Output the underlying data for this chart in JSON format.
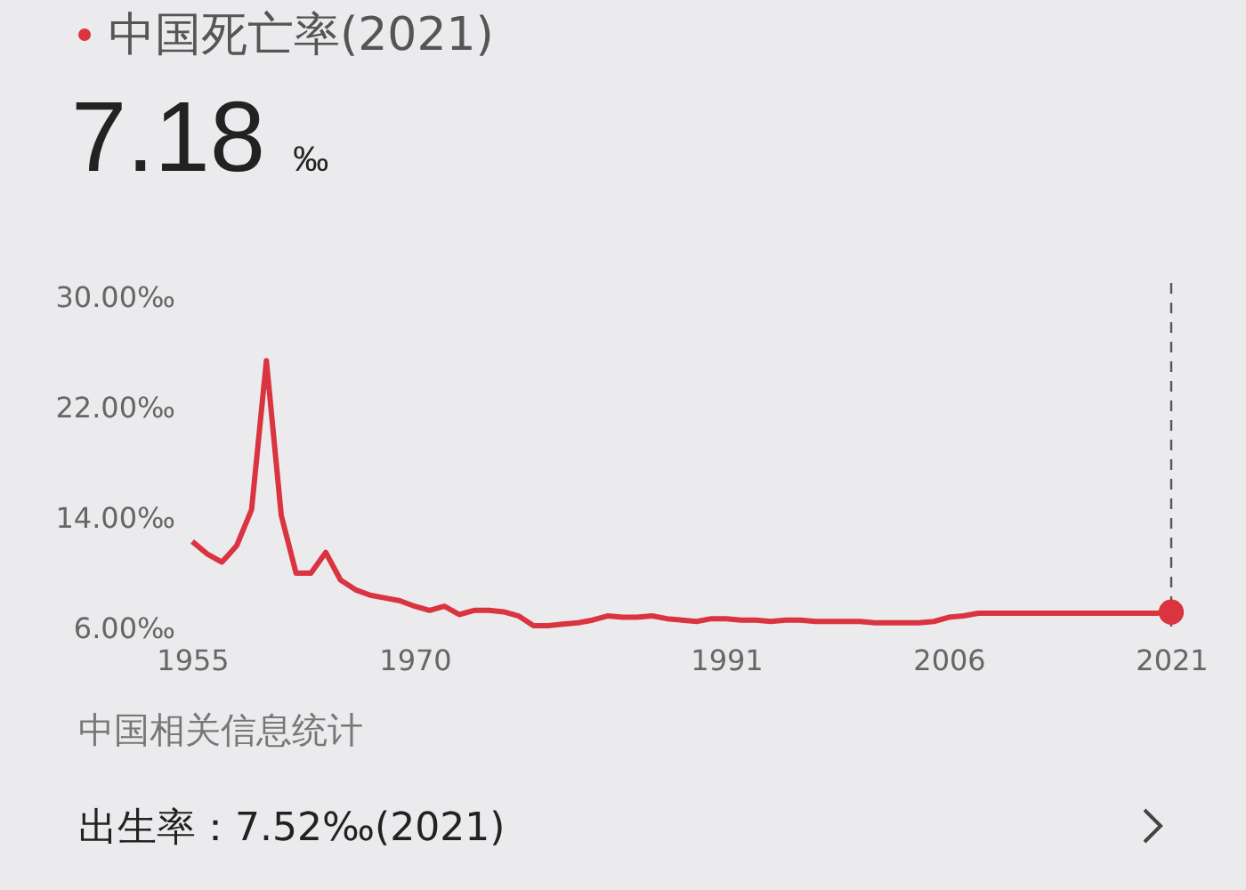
{
  "chart_data": {
    "type": "line",
    "title": "中国死亡率(2021)",
    "subtitle": "7.18 ‰",
    "annotations": [
      "中国相关信息统计",
      "出生率：7.52‰(2021)"
    ],
    "x": [
      1955,
      1956,
      1957,
      1958,
      1959,
      1960,
      1961,
      1962,
      1963,
      1964,
      1965,
      1966,
      1967,
      1968,
      1969,
      1970,
      1971,
      1972,
      1973,
      1974,
      1975,
      1976,
      1977,
      1978,
      1979,
      1980,
      1981,
      1982,
      1983,
      1984,
      1985,
      1986,
      1987,
      1988,
      1989,
      1990,
      1991,
      1992,
      1993,
      1994,
      1995,
      1996,
      1997,
      1998,
      1999,
      2000,
      2001,
      2002,
      2003,
      2004,
      2005,
      2006,
      2007,
      2008,
      2009,
      2010,
      2011,
      2012,
      2013,
      2014,
      2015,
      2016,
      2017,
      2018,
      2019,
      2020,
      2021
    ],
    "series": [
      {
        "color": "#d9343f",
        "values": [
          12.3,
          11.4,
          10.8,
          12.0,
          14.6,
          25.4,
          14.2,
          10.0,
          10.0,
          11.5,
          9.5,
          8.8,
          8.4,
          8.2,
          8.0,
          7.6,
          7.3,
          7.6,
          7.0,
          7.3,
          7.3,
          7.2,
          6.9,
          6.2,
          6.2,
          6.3,
          6.4,
          6.6,
          6.9,
          6.8,
          6.8,
          6.9,
          6.7,
          6.6,
          6.5,
          6.7,
          6.7,
          6.6,
          6.6,
          6.5,
          6.6,
          6.6,
          6.5,
          6.5,
          6.5,
          6.5,
          6.4,
          6.4,
          6.4,
          6.4,
          6.5,
          6.8,
          6.9,
          7.1,
          7.1,
          7.1,
          7.1,
          7.1,
          7.1,
          7.1,
          7.1,
          7.1,
          7.1,
          7.1,
          7.1,
          7.1,
          7.18
        ]
      },
      {
        "type": "scatter",
        "marker": "circle",
        "color": "#d9343f",
        "x": [
          2021
        ],
        "values": [
          7.18
        ]
      }
    ],
    "xlim": [
      1955,
      2021
    ],
    "xticks": [
      1955,
      1970,
      1991,
      2006,
      2021
    ],
    "ylim": [
      6,
      30
    ],
    "yticks": [
      {
        "value": 6,
        "label": "6.00‰"
      },
      {
        "value": 14,
        "label": "14.00‰"
      },
      {
        "value": 22,
        "label": "22.00‰"
      },
      {
        "value": 30,
        "label": "30.00‰"
      }
    ],
    "ref_lines": [
      {
        "axis": "x",
        "value": 2021,
        "line_style": "dashed",
        "color": "#555555"
      }
    ],
    "grid": false,
    "line_style": "solid"
  }
}
